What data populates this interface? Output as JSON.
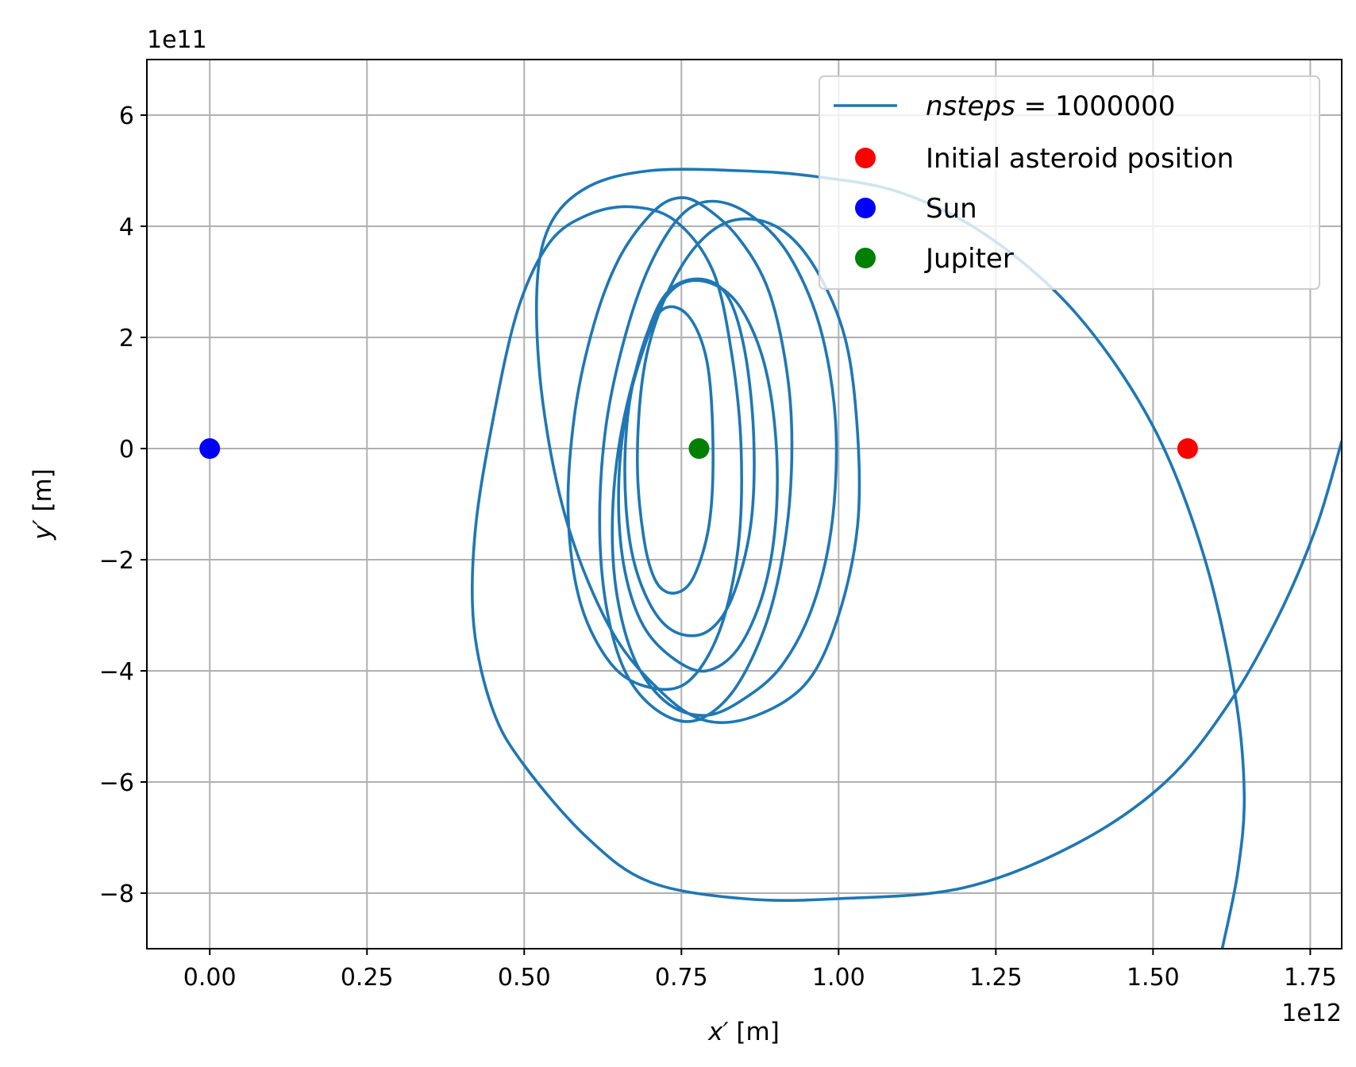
{
  "chart_data": {
    "type": "line",
    "title": "",
    "xlabel_var": "x′",
    "xlabel_unit": " [m]",
    "ylabel_var": "y′",
    "ylabel_unit": " [m]",
    "x_offset_label": "1e12",
    "y_offset_label": "1e11",
    "xlim": [
      -0.1,
      1.8
    ],
    "ylim": [
      -9,
      7
    ],
    "x_scale_note": "x in units of 1e12 m",
    "y_scale_note": "y in units of 1e11 m",
    "xticks": [
      0.0,
      0.25,
      0.5,
      0.75,
      1.0,
      1.25,
      1.5,
      1.75
    ],
    "xtick_labels": [
      "0.00",
      "0.25",
      "0.50",
      "0.75",
      "1.00",
      "1.25",
      "1.50",
      "1.75"
    ],
    "yticks": [
      6,
      4,
      2,
      0,
      -2,
      -4,
      -6,
      -8
    ],
    "ytick_labels": [
      "6",
      "4",
      "2",
      "0",
      "−2",
      "−4",
      "−6",
      "−8"
    ],
    "grid": true,
    "legend_position": "top-right",
    "colors": {
      "trajectory": "#1f77b4",
      "initial": "#ff0000",
      "sun": "#0000ff",
      "jupiter": "#008000"
    },
    "series": [
      {
        "name_italic": "nsteps",
        "name_rest": " = 1000000",
        "kind": "line",
        "points": [
          [
            1.8,
            0.13
          ],
          [
            1.76,
            -1.4
          ],
          [
            1.7,
            -3.0
          ],
          [
            1.62,
            -4.6
          ],
          [
            1.52,
            -6.0
          ],
          [
            1.38,
            -7.1
          ],
          [
            1.2,
            -7.9
          ],
          [
            1.0,
            -8.1
          ],
          [
            0.85,
            -8.1
          ],
          [
            0.7,
            -7.8
          ],
          [
            0.6,
            -7.0
          ],
          [
            0.5,
            -5.7
          ],
          [
            0.45,
            -4.7
          ],
          [
            0.42,
            -3.2
          ],
          [
            0.422,
            -1.5
          ],
          [
            0.45,
            0.5
          ],
          [
            0.49,
            2.5
          ],
          [
            0.54,
            3.7
          ],
          [
            0.6,
            4.2
          ],
          [
            0.67,
            4.35
          ],
          [
            0.74,
            4.1
          ],
          [
            0.8,
            3.2
          ],
          [
            0.83,
            1.7
          ],
          [
            0.845,
            0.0
          ],
          [
            0.84,
            -1.8
          ],
          [
            0.81,
            -3.3
          ],
          [
            0.76,
            -4.2
          ],
          [
            0.7,
            -4.3
          ],
          [
            0.64,
            -3.9
          ],
          [
            0.59,
            -2.8
          ],
          [
            0.57,
            -1.2
          ],
          [
            0.58,
            0.6
          ],
          [
            0.61,
            2.2
          ],
          [
            0.65,
            3.4
          ],
          [
            0.7,
            4.2
          ],
          [
            0.74,
            4.5
          ],
          [
            0.78,
            4.4
          ],
          [
            0.84,
            3.8
          ],
          [
            0.89,
            2.8
          ],
          [
            0.92,
            1.2
          ],
          [
            0.925,
            -0.4
          ],
          [
            0.91,
            -2.0
          ],
          [
            0.88,
            -3.3
          ],
          [
            0.83,
            -4.4
          ],
          [
            0.77,
            -4.9
          ],
          [
            0.71,
            -4.7
          ],
          [
            0.66,
            -4.0
          ],
          [
            0.63,
            -2.8
          ],
          [
            0.62,
            -1.3
          ],
          [
            0.63,
            0.4
          ],
          [
            0.66,
            2.0
          ],
          [
            0.7,
            3.3
          ],
          [
            0.75,
            4.2
          ],
          [
            0.8,
            4.45
          ],
          [
            0.86,
            4.2
          ],
          [
            0.92,
            3.5
          ],
          [
            0.97,
            2.2
          ],
          [
            0.995,
            0.5
          ],
          [
            0.99,
            -1.3
          ],
          [
            0.96,
            -2.8
          ],
          [
            0.91,
            -3.9
          ],
          [
            0.85,
            -4.5
          ],
          [
            0.79,
            -4.8
          ],
          [
            0.73,
            -4.6
          ],
          [
            0.68,
            -3.9
          ],
          [
            0.65,
            -2.8
          ],
          [
            0.64,
            -1.5
          ],
          [
            0.65,
            0.0
          ],
          [
            0.68,
            1.5
          ],
          [
            0.72,
            2.7
          ],
          [
            0.77,
            3.05
          ],
          [
            0.82,
            2.8
          ],
          [
            0.85,
            1.8
          ],
          [
            0.865,
            0.2
          ],
          [
            0.86,
            -1.4
          ],
          [
            0.83,
            -2.7
          ],
          [
            0.79,
            -3.3
          ],
          [
            0.74,
            -3.3
          ],
          [
            0.7,
            -2.8
          ],
          [
            0.67,
            -1.8
          ],
          [
            0.66,
            -0.4
          ],
          [
            0.67,
            1.0
          ],
          [
            0.7,
            2.2
          ],
          [
            0.74,
            2.9
          ],
          [
            0.79,
            3.0
          ],
          [
            0.84,
            2.6
          ],
          [
            0.88,
            1.6
          ],
          [
            0.9,
            0.2
          ],
          [
            0.9,
            -1.3
          ],
          [
            0.88,
            -2.6
          ],
          [
            0.84,
            -3.6
          ],
          [
            0.79,
            -4.0
          ],
          [
            0.74,
            -3.8
          ],
          [
            0.69,
            -3.2
          ],
          [
            0.66,
            -2.2
          ],
          [
            0.65,
            -0.9
          ],
          [
            0.66,
            0.5
          ],
          [
            0.69,
            1.8
          ],
          [
            0.72,
            2.5
          ],
          [
            0.76,
            2.4
          ],
          [
            0.79,
            1.6
          ],
          [
            0.8,
            0.2
          ],
          [
            0.795,
            -1.3
          ],
          [
            0.77,
            -2.3
          ],
          [
            0.74,
            -2.6
          ],
          [
            0.71,
            -2.4
          ],
          [
            0.69,
            -1.6
          ],
          [
            0.68,
            -0.2
          ],
          [
            0.69,
            1.4
          ],
          [
            0.72,
            2.6
          ],
          [
            0.77,
            3.6
          ],
          [
            0.83,
            4.1
          ],
          [
            0.9,
            4.0
          ],
          [
            0.96,
            3.3
          ],
          [
            1.01,
            2.0
          ],
          [
            1.03,
            0.3
          ],
          [
            1.03,
            -1.4
          ],
          [
            1.0,
            -3.0
          ],
          [
            0.95,
            -4.2
          ],
          [
            0.87,
            -4.8
          ],
          [
            0.79,
            -4.9
          ],
          [
            0.72,
            -4.4
          ],
          [
            0.64,
            -3.3
          ],
          [
            0.57,
            -1.4
          ],
          [
            0.53,
            0.8
          ],
          [
            0.52,
            2.8
          ],
          [
            0.54,
            4.0
          ],
          [
            0.6,
            4.7
          ],
          [
            0.7,
            5.0
          ],
          [
            0.84,
            5.0
          ],
          [
            0.96,
            4.9
          ],
          [
            1.1,
            4.6
          ],
          [
            1.24,
            3.8
          ],
          [
            1.38,
            2.4
          ],
          [
            1.5,
            0.4
          ],
          [
            1.58,
            -1.9
          ],
          [
            1.63,
            -4.4
          ],
          [
            1.645,
            -6.2
          ],
          [
            1.635,
            -7.6
          ],
          [
            1.61,
            -9.0
          ]
        ]
      },
      {
        "name": "Initial asteroid position",
        "kind": "point",
        "x": 1.555,
        "y": 0.0,
        "color": "#ff0000"
      },
      {
        "name": "Sun",
        "kind": "point",
        "x": 0.0,
        "y": 0.0,
        "color": "#0000ff"
      },
      {
        "name": "Jupiter",
        "kind": "point",
        "x": 0.778,
        "y": 0.0,
        "color": "#008000"
      }
    ]
  }
}
